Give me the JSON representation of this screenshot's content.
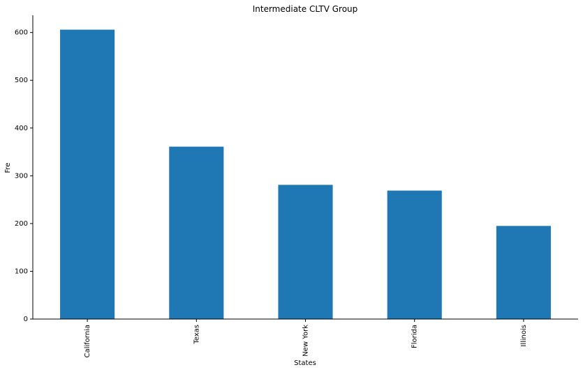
{
  "chart_data": {
    "type": "bar",
    "title": "Intermediate CLTV Group",
    "xlabel": "States",
    "ylabel": "Fre",
    "categories": [
      "California",
      "Texas",
      "New York",
      "Florida",
      "Illinois"
    ],
    "values": [
      606,
      361,
      281,
      269,
      195
    ],
    "yticks": [
      0,
      100,
      200,
      300,
      400,
      500,
      600
    ],
    "ylim": [
      0,
      636
    ],
    "grid": false,
    "legend": "none",
    "colors": {
      "bar": "#1f77b4"
    }
  }
}
